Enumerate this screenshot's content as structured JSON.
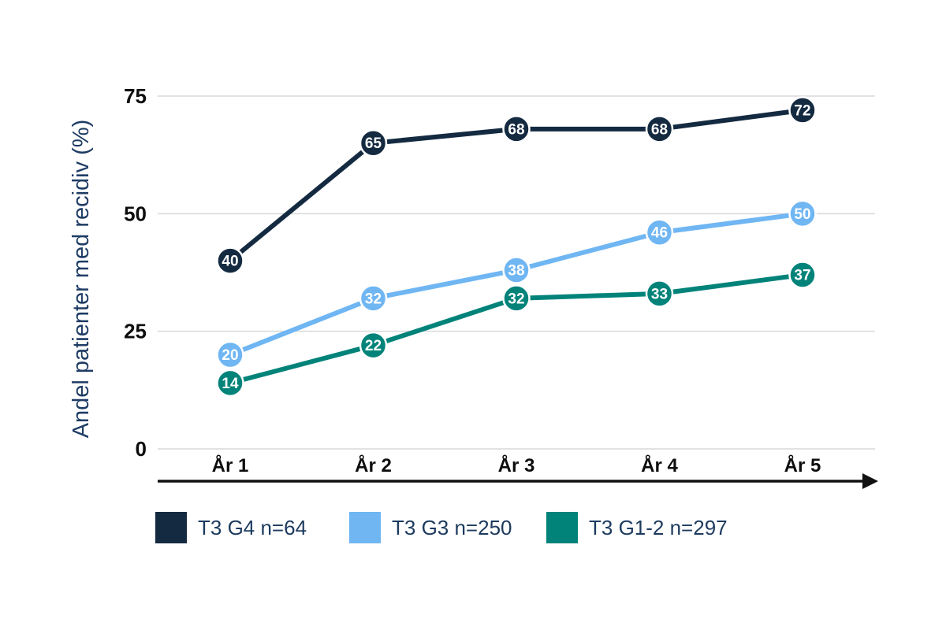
{
  "chart_data": {
    "type": "line",
    "title": "",
    "xlabel": "",
    "ylabel": "Andel patienter med recidiv (%)",
    "categories": [
      "År 1",
      "År 2",
      "År 3",
      "År 4",
      "År 5"
    ],
    "y_ticks": [
      0,
      25,
      50,
      75
    ],
    "ylim": [
      0,
      75
    ],
    "grid": true,
    "legend_position": "bottom",
    "series": [
      {
        "name": "T3 G4 n=64",
        "color": "#142a41",
        "values": [
          40,
          65,
          68,
          68,
          72
        ]
      },
      {
        "name": "T3 G3 n=250",
        "color": "#6fb6f3",
        "values": [
          20,
          32,
          38,
          46,
          50
        ]
      },
      {
        "name": "T3 G1-2 n=297",
        "color": "#02837a",
        "values": [
          14,
          22,
          32,
          33,
          37
        ]
      }
    ],
    "colors": {
      "grid": "#d9d9d9",
      "axis": "#111111",
      "tick_label": "#0d0d0d",
      "marker_value_label": "#ffffff",
      "marker_outline": "#ffffff",
      "ylabel_text": "#1e3c64",
      "legend_text": "#1c3a5e",
      "background": "#ffffff"
    }
  }
}
